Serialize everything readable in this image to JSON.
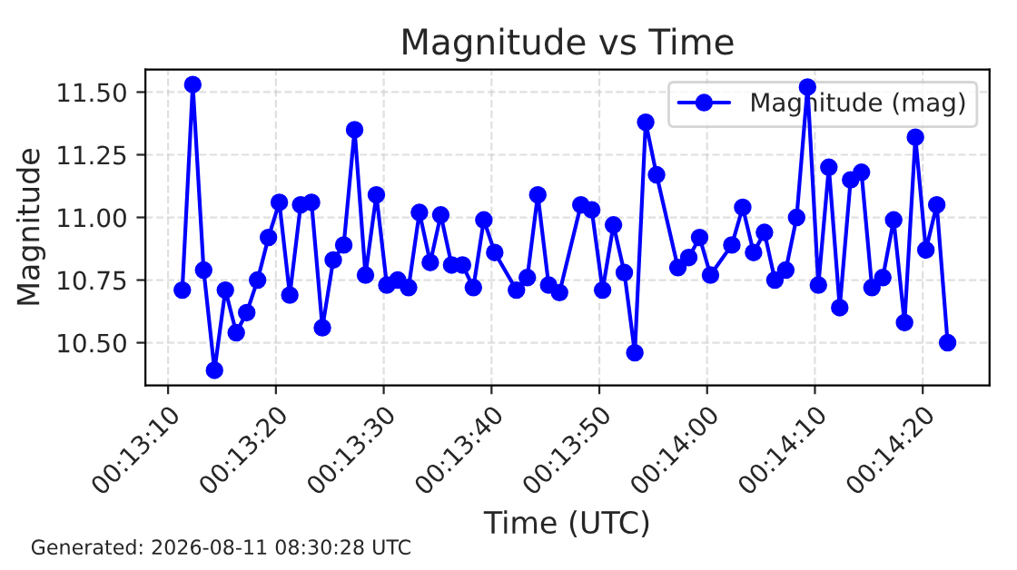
{
  "chart_data": {
    "type": "line",
    "title": "Magnitude vs Time",
    "xlabel": "Time (UTC)",
    "ylabel": "Magnitude",
    "annotations": [
      "Generated: 2026-08-11 08:30:28 UTC"
    ],
    "x": [
      0.21981,
      0.22008,
      0.22036,
      0.22064,
      0.22092,
      0.2212,
      0.22147,
      0.22175,
      0.22203,
      0.22231,
      0.22258,
      0.22286,
      0.22314,
      0.22342,
      0.2237,
      0.22397,
      0.22425,
      0.22453,
      0.22481,
      0.22508,
      0.22536,
      0.22564,
      0.22592,
      0.2262,
      0.22647,
      0.22675,
      0.22703,
      0.22731,
      0.22758,
      0.22786,
      0.22842,
      0.2287,
      0.22897,
      0.22925,
      0.22953,
      0.23008,
      0.23036,
      0.23064,
      0.23092,
      0.2312,
      0.23147,
      0.23175,
      0.23203,
      0.23258,
      0.23286,
      0.23314,
      0.23342,
      0.23397,
      0.23425,
      0.23453,
      0.23481,
      0.23508,
      0.23536,
      0.23564,
      0.23592,
      0.2362,
      0.23647,
      0.23675,
      0.23703,
      0.23731,
      0.23758,
      0.23786,
      0.23814,
      0.23842,
      0.2387,
      0.23897,
      0.23925,
      0.23953
    ],
    "series": [
      {
        "name": "Magnitude (mag)",
        "color": "#0000ff",
        "values": [
          10.71,
          11.53,
          10.79,
          10.39,
          10.71,
          10.54,
          10.62,
          10.75,
          10.92,
          11.06,
          10.69,
          11.05,
          11.06,
          10.56,
          10.83,
          10.89,
          11.35,
          10.77,
          11.09,
          10.73,
          10.75,
          10.72,
          11.02,
          10.82,
          11.01,
          10.81,
          10.81,
          10.72,
          10.99,
          10.86,
          10.71,
          10.76,
          11.09,
          10.73,
          10.7,
          11.05,
          11.03,
          10.71,
          10.97,
          10.78,
          10.46,
          11.38,
          11.17,
          10.8,
          10.84,
          10.92,
          10.77,
          10.89,
          11.04,
          10.86,
          10.94,
          10.75,
          10.79,
          11.0,
          11.52,
          10.73,
          11.2,
          10.64,
          11.15,
          11.18,
          10.72,
          10.76,
          10.99,
          10.58,
          11.32,
          10.87,
          11.05,
          10.5
        ]
      }
    ],
    "xlim": [
      0.21886,
      0.24061
    ],
    "xticks": [
      {
        "value": 0.219444,
        "label": "00:13:10"
      },
      {
        "value": 0.222222,
        "label": "00:13:20"
      },
      {
        "value": 0.225,
        "label": "00:13:30"
      },
      {
        "value": 0.227778,
        "label": "00:13:40"
      },
      {
        "value": 0.230556,
        "label": "00:13:50"
      },
      {
        "value": 0.233333,
        "label": "00:14:00"
      },
      {
        "value": 0.236111,
        "label": "00:14:10"
      },
      {
        "value": 0.238889,
        "label": "00:14:20"
      }
    ],
    "ylim": [
      10.33,
      11.59
    ],
    "yticks": [
      {
        "value": 10.5,
        "label": "10.50"
      },
      {
        "value": 10.75,
        "label": "10.75"
      },
      {
        "value": 11.0,
        "label": "11.00"
      },
      {
        "value": 11.25,
        "label": "11.25"
      },
      {
        "value": 11.5,
        "label": "11.50"
      }
    ],
    "grid": true,
    "legend": "top right",
    "marker": "circle",
    "line_style": "solid"
  }
}
